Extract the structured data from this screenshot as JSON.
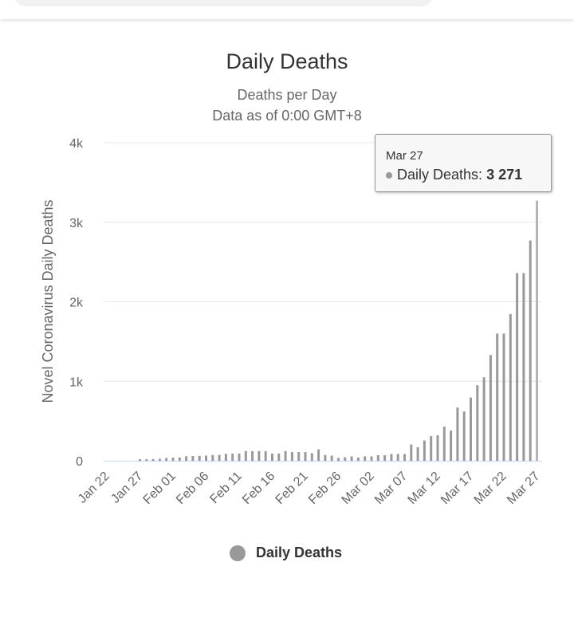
{
  "chart_data": {
    "type": "bar",
    "title": "Daily Deaths",
    "subtitle": [
      "Deaths per Day",
      "Data as of 0:00 GMT+8"
    ],
    "ylabel": "Novel Coronavirus Daily Deaths",
    "xlabel": "",
    "ylim": [
      0,
      4000
    ],
    "yticks": [
      {
        "value": 0,
        "label": "0"
      },
      {
        "value": 1000,
        "label": "1k"
      },
      {
        "value": 2000,
        "label": "2k"
      },
      {
        "value": 3000,
        "label": "3k"
      },
      {
        "value": 4000,
        "label": "4k"
      }
    ],
    "xtick_labels": [
      "Jan 22",
      "Jan 27",
      "Feb 01",
      "Feb 06",
      "Feb 11",
      "Feb 16",
      "Feb 21",
      "Feb 26",
      "Mar 02",
      "Mar 07",
      "Mar 12",
      "Mar 17",
      "Mar 22",
      "Mar 27"
    ],
    "grid": true,
    "legend_position": "bottom",
    "series": [
      {
        "name": "Daily Deaths",
        "color": "#999999",
        "categories": [
          "Jan 22",
          "Jan 23",
          "Jan 24",
          "Jan 25",
          "Jan 26",
          "Jan 27",
          "Jan 28",
          "Jan 29",
          "Jan 30",
          "Jan 31",
          "Feb 01",
          "Feb 02",
          "Feb 03",
          "Feb 04",
          "Feb 05",
          "Feb 06",
          "Feb 07",
          "Feb 08",
          "Feb 09",
          "Feb 10",
          "Feb 11",
          "Feb 12",
          "Feb 13",
          "Feb 14",
          "Feb 15",
          "Feb 16",
          "Feb 17",
          "Feb 18",
          "Feb 19",
          "Feb 20",
          "Feb 21",
          "Feb 22",
          "Feb 23",
          "Feb 24",
          "Feb 25",
          "Feb 26",
          "Feb 27",
          "Feb 28",
          "Feb 29",
          "Mar 01",
          "Mar 02",
          "Mar 03",
          "Mar 04",
          "Mar 05",
          "Mar 06",
          "Mar 07",
          "Mar 08",
          "Mar 09",
          "Mar 10",
          "Mar 11",
          "Mar 12",
          "Mar 13",
          "Mar 14",
          "Mar 15",
          "Mar 16",
          "Mar 17",
          "Mar 18",
          "Mar 19",
          "Mar 20",
          "Mar 21",
          "Mar 22",
          "Mar 23",
          "Mar 24",
          "Mar 25",
          "Mar 26",
          "Mar 27"
        ],
        "values": [
          0,
          0,
          0,
          0,
          0,
          20,
          20,
          22,
          25,
          36,
          40,
          42,
          57,
          60,
          62,
          65,
          73,
          75,
          87,
          90,
          92,
          122,
          120,
          122,
          122,
          90,
          92,
          122,
          110,
          110,
          110,
          95,
          143,
          73,
          65,
          35,
          45,
          55,
          40,
          55,
          55,
          70,
          70,
          85,
          85,
          85,
          205,
          170,
          255,
          310,
          320,
          430,
          380,
          670,
          620,
          795,
          950,
          1050,
          1330,
          1600,
          1600,
          1845,
          2360,
          2360,
          2770,
          3271
        ]
      }
    ],
    "tooltip": {
      "date": "Mar 27",
      "series": "Daily Deaths",
      "value_label": "3 271"
    }
  }
}
